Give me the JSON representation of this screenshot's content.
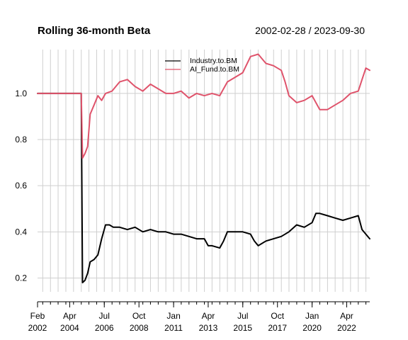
{
  "chart_data": {
    "type": "line",
    "title": "Rolling 36-month Beta",
    "date_range": "2002-02-28 / 2023-09-30",
    "xlabel": "",
    "ylabel": "",
    "xlim": [
      "2002-02-28",
      "2023-09-30"
    ],
    "ylim": [
      0.14,
      1.19
    ],
    "y_ticks": [
      {
        "value": 0.2,
        "label": "0.2"
      },
      {
        "value": 0.4,
        "label": "0.4"
      },
      {
        "value": 0.6,
        "label": "0.6"
      },
      {
        "value": 0.8,
        "label": "0.8"
      },
      {
        "value": 1.0,
        "label": "1.0"
      }
    ],
    "x_ticks": [
      {
        "date": "2002-02-01",
        "month": "Feb",
        "year": "2002"
      },
      {
        "date": "2004-04-01",
        "month": "Apr",
        "year": "2004"
      },
      {
        "date": "2006-07-01",
        "month": "Jul",
        "year": "2006"
      },
      {
        "date": "2008-10-01",
        "month": "Oct",
        "year": "2008"
      },
      {
        "date": "2011-01-01",
        "month": "Jan",
        "year": "2011"
      },
      {
        "date": "2013-04-01",
        "month": "Apr",
        "year": "2013"
      },
      {
        "date": "2015-07-01",
        "month": "Jul",
        "year": "2015"
      },
      {
        "date": "2017-10-01",
        "month": "Oct",
        "year": "2017"
      },
      {
        "date": "2020-01-01",
        "month": "Jan",
        "year": "2020"
      },
      {
        "date": "2022-04-01",
        "month": "Apr",
        "year": "2022"
      }
    ],
    "grid": true,
    "legend_position": "top-center",
    "series": [
      {
        "name": "Industry.to.BM",
        "color": "#000000",
        "points": [
          [
            "2002-02-28",
            1.0
          ],
          [
            "2004-12-31",
            1.0
          ],
          [
            "2005-01-31",
            0.18
          ],
          [
            "2005-03-31",
            0.19
          ],
          [
            "2005-05-31",
            0.22
          ],
          [
            "2005-07-31",
            0.27
          ],
          [
            "2005-10-31",
            0.28
          ],
          [
            "2006-01-31",
            0.3
          ],
          [
            "2006-04-30",
            0.37
          ],
          [
            "2006-07-31",
            0.43
          ],
          [
            "2006-10-31",
            0.43
          ],
          [
            "2007-01-31",
            0.42
          ],
          [
            "2007-06-30",
            0.42
          ],
          [
            "2007-12-31",
            0.41
          ],
          [
            "2008-06-30",
            0.42
          ],
          [
            "2008-12-31",
            0.4
          ],
          [
            "2009-06-30",
            0.41
          ],
          [
            "2009-12-31",
            0.4
          ],
          [
            "2010-06-30",
            0.4
          ],
          [
            "2010-12-31",
            0.39
          ],
          [
            "2011-06-30",
            0.39
          ],
          [
            "2011-12-31",
            0.38
          ],
          [
            "2012-06-30",
            0.37
          ],
          [
            "2012-12-31",
            0.37
          ],
          [
            "2013-03-31",
            0.34
          ],
          [
            "2013-06-30",
            0.34
          ],
          [
            "2013-12-31",
            0.33
          ],
          [
            "2014-03-31",
            0.36
          ],
          [
            "2014-06-30",
            0.4
          ],
          [
            "2014-12-31",
            0.4
          ],
          [
            "2015-06-30",
            0.4
          ],
          [
            "2015-12-31",
            0.39
          ],
          [
            "2016-03-31",
            0.36
          ],
          [
            "2016-06-30",
            0.34
          ],
          [
            "2016-12-31",
            0.36
          ],
          [
            "2017-06-30",
            0.37
          ],
          [
            "2017-12-31",
            0.38
          ],
          [
            "2018-06-30",
            0.4
          ],
          [
            "2018-12-31",
            0.43
          ],
          [
            "2019-06-30",
            0.42
          ],
          [
            "2019-12-31",
            0.44
          ],
          [
            "2020-03-31",
            0.48
          ],
          [
            "2020-06-30",
            0.48
          ],
          [
            "2020-12-31",
            0.47
          ],
          [
            "2021-06-30",
            0.46
          ],
          [
            "2021-12-31",
            0.45
          ],
          [
            "2022-06-30",
            0.46
          ],
          [
            "2022-12-31",
            0.47
          ],
          [
            "2023-03-31",
            0.41
          ],
          [
            "2023-06-30",
            0.39
          ],
          [
            "2023-09-30",
            0.37
          ]
        ]
      },
      {
        "name": "AI_Fund.to.BM",
        "color": "#DF536B",
        "points": [
          [
            "2002-02-28",
            1.0
          ],
          [
            "2004-12-31",
            1.0
          ],
          [
            "2005-01-31",
            0.72
          ],
          [
            "2005-03-31",
            0.74
          ],
          [
            "2005-05-31",
            0.77
          ],
          [
            "2005-07-31",
            0.91
          ],
          [
            "2005-10-31",
            0.95
          ],
          [
            "2006-01-31",
            0.99
          ],
          [
            "2006-04-30",
            0.97
          ],
          [
            "2006-07-31",
            1.0
          ],
          [
            "2006-12-31",
            1.01
          ],
          [
            "2007-06-30",
            1.05
          ],
          [
            "2007-12-31",
            1.06
          ],
          [
            "2008-06-30",
            1.03
          ],
          [
            "2008-12-31",
            1.01
          ],
          [
            "2009-06-30",
            1.04
          ],
          [
            "2009-12-31",
            1.02
          ],
          [
            "2010-06-30",
            1.0
          ],
          [
            "2010-12-31",
            1.0
          ],
          [
            "2011-06-30",
            1.01
          ],
          [
            "2011-12-31",
            0.98
          ],
          [
            "2012-06-30",
            1.0
          ],
          [
            "2012-12-31",
            0.99
          ],
          [
            "2013-06-30",
            1.0
          ],
          [
            "2013-12-31",
            0.99
          ],
          [
            "2014-06-30",
            1.05
          ],
          [
            "2014-12-31",
            1.07
          ],
          [
            "2015-06-30",
            1.09
          ],
          [
            "2015-12-31",
            1.16
          ],
          [
            "2016-06-30",
            1.17
          ],
          [
            "2016-12-31",
            1.13
          ],
          [
            "2017-06-30",
            1.12
          ],
          [
            "2017-12-31",
            1.1
          ],
          [
            "2018-03-31",
            1.05
          ],
          [
            "2018-06-30",
            0.99
          ],
          [
            "2018-12-31",
            0.96
          ],
          [
            "2019-06-30",
            0.97
          ],
          [
            "2019-12-31",
            0.99
          ],
          [
            "2020-06-30",
            0.93
          ],
          [
            "2020-12-31",
            0.93
          ],
          [
            "2021-06-30",
            0.95
          ],
          [
            "2021-12-31",
            0.97
          ],
          [
            "2022-06-30",
            1.0
          ],
          [
            "2022-12-31",
            1.01
          ],
          [
            "2023-03-31",
            1.06
          ],
          [
            "2023-06-30",
            1.11
          ],
          [
            "2023-09-30",
            1.1
          ]
        ]
      }
    ]
  }
}
